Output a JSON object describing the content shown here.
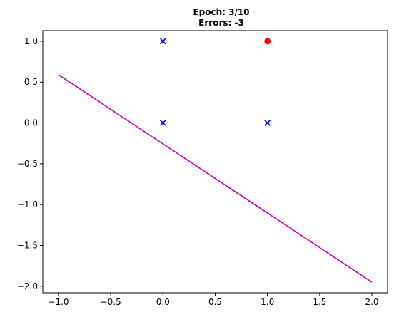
{
  "chart_data": {
    "type": "scatter",
    "title_lines": [
      "Epoch: 3/10",
      "Errors: -3"
    ],
    "xlabel": "",
    "ylabel": "",
    "xlim": [
      -1.15,
      2.15
    ],
    "ylim": [
      -2.08,
      1.13
    ],
    "x_ticks": [
      -1.0,
      -0.5,
      0.0,
      0.5,
      1.0,
      1.5,
      2.0
    ],
    "x_tick_labels": [
      "−1.0",
      "−0.5",
      "0.0",
      "0.5",
      "1.0",
      "1.5",
      "2.0"
    ],
    "y_ticks": [
      1.0,
      0.5,
      0.0,
      -0.5,
      -1.0,
      -1.5,
      -2.0
    ],
    "y_tick_labels": [
      "1.0",
      "0.5",
      "0.0",
      "−0.5",
      "−1.0",
      "−1.5",
      "−2.0"
    ],
    "grid": false,
    "points": [
      {
        "x": 0,
        "y": 0,
        "marker": "x",
        "color": "#0000ff"
      },
      {
        "x": 0,
        "y": 1,
        "marker": "x",
        "color": "#0000ff"
      },
      {
        "x": 1,
        "y": 0,
        "marker": "x",
        "color": "#0000ff"
      },
      {
        "x": 1,
        "y": 1,
        "marker": "o",
        "color": "#ff0000"
      }
    ],
    "decision_line": {
      "x": [
        -1.0,
        2.0
      ],
      "y": [
        0.59,
        -1.95
      ],
      "color": "#bf00bf"
    }
  }
}
